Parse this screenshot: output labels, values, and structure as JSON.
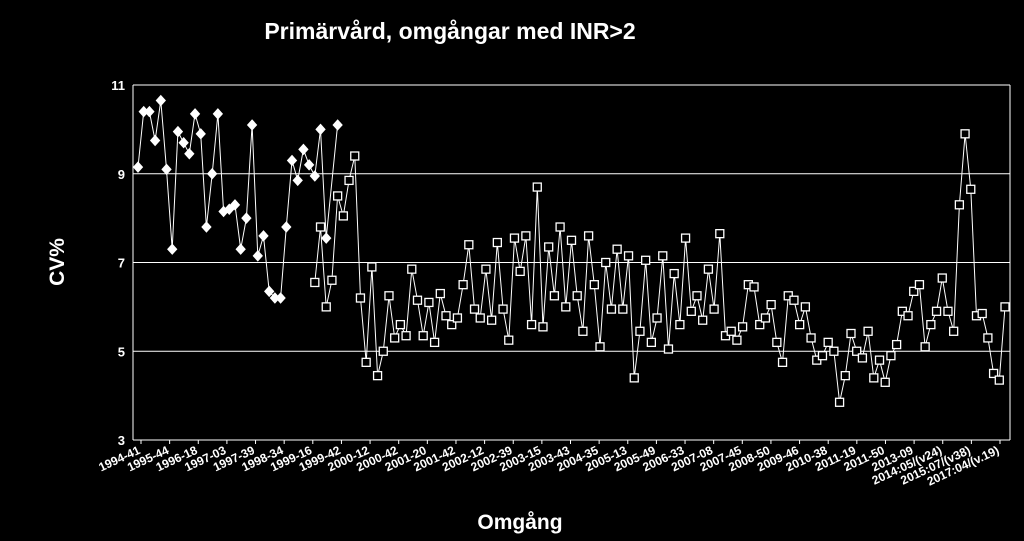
{
  "chart_data": {
    "type": "line",
    "title": "Primärvård, omgångar med INR>2",
    "xlabel": "Omgång",
    "ylabel": "CV%",
    "ylim": [
      3,
      11
    ],
    "yticks": [
      3,
      5,
      7,
      9,
      11
    ],
    "grid": true,
    "colors": {
      "background": "#000000",
      "line": "#ffffff",
      "grid": "#ffffff"
    },
    "x_tick_labels": [
      "1994-41",
      "1995-44",
      "1996-18",
      "1997-03",
      "1997-39",
      "1998-34",
      "1999-16",
      "1999-42",
      "2000-12",
      "2000-42",
      "2001-20",
      "2001-42",
      "2002-12",
      "2002-39",
      "2003-15",
      "2003-43",
      "2004-35",
      "2005-13",
      "2005-49",
      "2006-33",
      "2007-08",
      "2007-45",
      "2008-50",
      "2009-46",
      "2010-38",
      "2011-19",
      "2011-50",
      "2013-09",
      "2014:05/(v24)",
      "2015:07/(v38)",
      "2017:04/(v.19)"
    ],
    "series": [
      {
        "marker": "diamond",
        "points": [
          [
            0,
            9.15
          ],
          [
            1,
            10.4
          ],
          [
            2,
            10.4
          ],
          [
            3,
            9.75
          ],
          [
            4,
            10.65
          ],
          [
            5,
            9.1
          ],
          [
            6,
            7.3
          ],
          [
            7,
            9.95
          ],
          [
            8,
            9.7
          ],
          [
            9,
            9.45
          ],
          [
            10,
            10.35
          ],
          [
            11,
            9.9
          ],
          [
            12,
            7.8
          ],
          [
            13,
            9.0
          ],
          [
            14,
            10.35
          ],
          [
            15,
            8.15
          ],
          [
            16,
            8.2
          ],
          [
            17,
            8.3
          ],
          [
            18,
            7.3
          ],
          [
            19,
            8.0
          ],
          [
            20,
            10.1
          ],
          [
            21,
            7.15
          ],
          [
            22,
            7.6
          ],
          [
            23,
            6.35
          ],
          [
            24,
            6.2
          ],
          [
            25,
            6.2
          ],
          [
            26,
            7.8
          ],
          [
            27,
            9.3
          ],
          [
            28,
            8.85
          ],
          [
            29,
            9.55
          ],
          [
            30,
            9.2
          ],
          [
            31,
            8.95
          ],
          [
            32,
            10.0
          ],
          [
            33,
            7.55
          ],
          [
            35,
            10.1
          ]
        ]
      },
      {
        "marker": "square",
        "points": [
          [
            31,
            6.55
          ],
          [
            32,
            7.8
          ],
          [
            33,
            6.0
          ],
          [
            34,
            6.6
          ],
          [
            35,
            8.5
          ],
          [
            36,
            8.05
          ],
          [
            37,
            8.85
          ],
          [
            38,
            9.4
          ],
          [
            39,
            6.2
          ],
          [
            40,
            4.75
          ],
          [
            41,
            6.9
          ],
          [
            42,
            4.45
          ],
          [
            43,
            5.0
          ],
          [
            44,
            6.25
          ],
          [
            45,
            5.3
          ],
          [
            46,
            5.6
          ],
          [
            47,
            5.35
          ],
          [
            48,
            6.85
          ],
          [
            49,
            6.15
          ],
          [
            50,
            5.35
          ],
          [
            51,
            6.1
          ],
          [
            52,
            5.2
          ],
          [
            53,
            6.3
          ],
          [
            54,
            5.8
          ],
          [
            55,
            5.6
          ],
          [
            56,
            5.75
          ],
          [
            57,
            6.5
          ],
          [
            58,
            7.4
          ],
          [
            59,
            5.95
          ],
          [
            60,
            5.75
          ],
          [
            61,
            6.85
          ],
          [
            62,
            5.7
          ],
          [
            63,
            7.45
          ],
          [
            64,
            5.95
          ],
          [
            65,
            5.25
          ],
          [
            66,
            7.55
          ],
          [
            67,
            6.8
          ],
          [
            68,
            7.6
          ],
          [
            69,
            5.6
          ],
          [
            70,
            8.7
          ],
          [
            71,
            5.55
          ],
          [
            72,
            7.35
          ],
          [
            73,
            6.25
          ],
          [
            74,
            7.8
          ],
          [
            75,
            6.0
          ],
          [
            76,
            7.5
          ],
          [
            77,
            6.25
          ],
          [
            78,
            5.45
          ],
          [
            79,
            7.6
          ],
          [
            80,
            6.5
          ],
          [
            81,
            5.1
          ],
          [
            82,
            7.0
          ],
          [
            83,
            5.95
          ],
          [
            84,
            7.3
          ],
          [
            85,
            5.95
          ],
          [
            86,
            7.15
          ],
          [
            87,
            4.4
          ],
          [
            88,
            5.45
          ],
          [
            89,
            7.05
          ],
          [
            90,
            5.2
          ],
          [
            91,
            5.75
          ],
          [
            92,
            7.15
          ],
          [
            93,
            5.05
          ],
          [
            94,
            6.75
          ],
          [
            95,
            5.6
          ],
          [
            96,
            7.55
          ],
          [
            97,
            5.9
          ],
          [
            98,
            6.25
          ],
          [
            99,
            5.7
          ],
          [
            100,
            6.85
          ],
          [
            101,
            5.95
          ],
          [
            102,
            7.65
          ],
          [
            103,
            5.35
          ],
          [
            104,
            5.45
          ],
          [
            105,
            5.25
          ],
          [
            106,
            5.55
          ],
          [
            107,
            6.5
          ],
          [
            108,
            6.45
          ],
          [
            109,
            5.6
          ],
          [
            110,
            5.75
          ],
          [
            111,
            6.05
          ],
          [
            112,
            5.2
          ],
          [
            113,
            4.75
          ],
          [
            114,
            6.25
          ],
          [
            115,
            6.15
          ],
          [
            116,
            5.6
          ],
          [
            117,
            6.0
          ],
          [
            118,
            5.3
          ],
          [
            119,
            4.8
          ],
          [
            120,
            4.9
          ],
          [
            121,
            5.2
          ],
          [
            122,
            5.0
          ],
          [
            123,
            3.85
          ],
          [
            124,
            4.45
          ],
          [
            125,
            5.4
          ],
          [
            126,
            5.0
          ],
          [
            127,
            4.85
          ],
          [
            128,
            5.45
          ],
          [
            129,
            4.4
          ],
          [
            130,
            4.8
          ],
          [
            131,
            4.3
          ],
          [
            132,
            4.9
          ],
          [
            133,
            5.15
          ],
          [
            134,
            5.9
          ],
          [
            135,
            5.8
          ],
          [
            136,
            6.35
          ],
          [
            137,
            6.5
          ],
          [
            138,
            5.1
          ],
          [
            139,
            5.6
          ],
          [
            140,
            5.9
          ],
          [
            141,
            6.65
          ],
          [
            142,
            5.9
          ],
          [
            143,
            5.45
          ],
          [
            144,
            8.3
          ],
          [
            145,
            9.9
          ],
          [
            146,
            8.65
          ],
          [
            147,
            5.8
          ],
          [
            148,
            5.85
          ],
          [
            149,
            5.3
          ],
          [
            150,
            4.5
          ],
          [
            151,
            4.35
          ],
          [
            152,
            6.0
          ]
        ]
      }
    ]
  }
}
